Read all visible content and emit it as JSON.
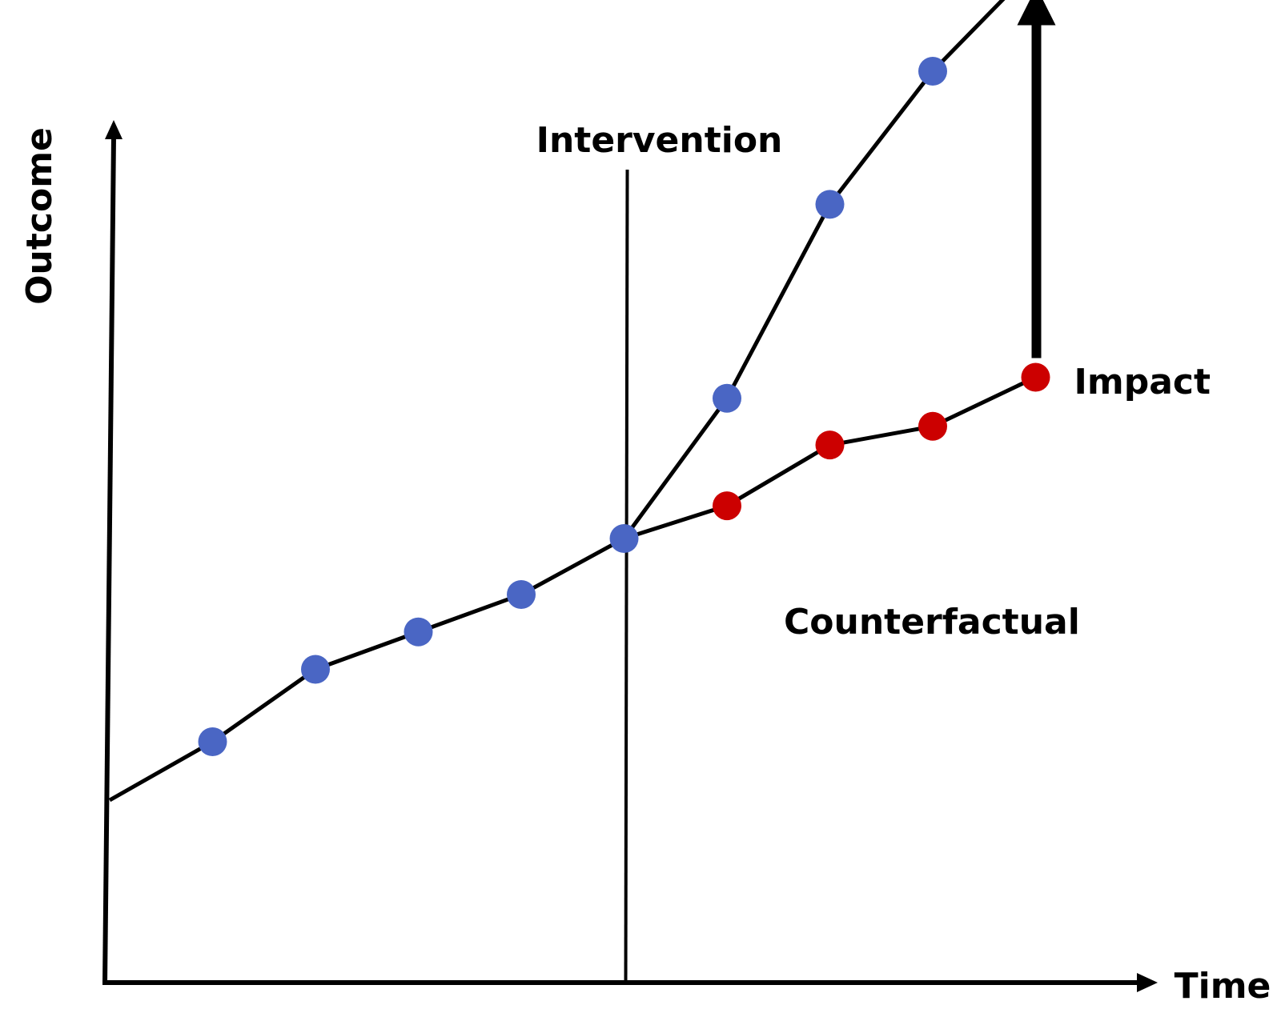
{
  "chart_data": {
    "type": "line",
    "title": "",
    "xlabel": "Time",
    "ylabel": "Outcome",
    "grid": false,
    "legend": "none",
    "series": [
      {
        "key": "observed",
        "color": "#4a66c4",
        "points": [
          {
            "x": 0,
            "y": 1.0,
            "marker": false
          },
          {
            "x": 1,
            "y": 1.25
          },
          {
            "x": 2,
            "y": 1.56
          },
          {
            "x": 3,
            "y": 1.72
          },
          {
            "x": 4,
            "y": 1.88
          },
          {
            "x": 5,
            "y": 2.12
          },
          {
            "x": 6,
            "y": 2.72
          },
          {
            "x": 7,
            "y": 3.55
          },
          {
            "x": 8,
            "y": 4.12
          },
          {
            "x": 9,
            "y": 4.57
          }
        ]
      },
      {
        "key": "counterfactual",
        "name": "Counterfactual",
        "color": "#cc0000",
        "points": [
          {
            "x": 5,
            "y": 2.12,
            "marker": false
          },
          {
            "x": 6,
            "y": 2.26
          },
          {
            "x": 7,
            "y": 2.52
          },
          {
            "x": 8,
            "y": 2.6
          },
          {
            "x": 9,
            "y": 2.81
          }
        ]
      }
    ],
    "annotations": {
      "intervention": {
        "label": "Intervention",
        "x": 5
      },
      "impact": {
        "label": "Impact",
        "x": 9,
        "from_y": 2.81,
        "to_y": 4.57
      },
      "counterfactual_label": "Counterfactual"
    }
  }
}
